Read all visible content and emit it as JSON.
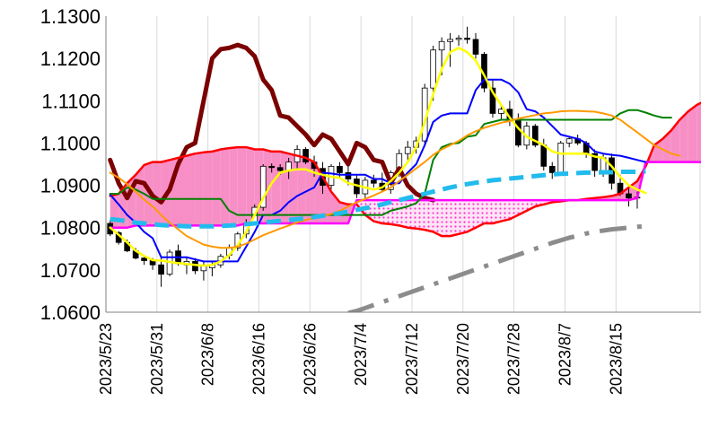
{
  "chart_data": {
    "type": "candlestick-ichimoku",
    "ylim": [
      1.06,
      1.13
    ],
    "y_ticks": [
      "1.1300",
      "1.1200",
      "1.1100",
      "1.1000",
      "1.0900",
      "1.0800",
      "1.0700",
      "1.0600"
    ],
    "y_tick_values": [
      1.13,
      1.12,
      1.11,
      1.1,
      1.09,
      1.08,
      1.07,
      1.06
    ],
    "x_ticks": [
      "2023/5/23",
      "2023/5/31",
      "2023/6/8",
      "2023/6/16",
      "2023/6/26",
      "2023/7/4",
      "2023/7/12",
      "2023/7/20",
      "2023/7/28",
      "2023/8/7",
      "2023/8/15"
    ],
    "x_tick_index": [
      0,
      6,
      12,
      18,
      24,
      30,
      36,
      42,
      48,
      54,
      60
    ],
    "n_slots": 70,
    "grid": "vertical",
    "candles": [
      [
        1.081,
        1.0818,
        1.078,
        1.0785
      ],
      [
        1.0788,
        1.0792,
        1.076,
        1.0765
      ],
      [
        1.0765,
        1.0772,
        1.0742,
        1.0745
      ],
      [
        1.0745,
        1.0752,
        1.0725,
        1.0728
      ],
      [
        1.0728,
        1.0735,
        1.0712,
        1.0722
      ],
      [
        1.0722,
        1.0728,
        1.07,
        1.0712
      ],
      [
        1.0712,
        1.073,
        1.066,
        1.069
      ],
      [
        1.069,
        1.0748,
        1.0685,
        1.0742
      ],
      [
        1.0745,
        1.076,
        1.071,
        1.0715
      ],
      [
        1.0712,
        1.073,
        1.069,
        1.072
      ],
      [
        1.072,
        1.0728,
        1.069,
        1.0698
      ],
      [
        1.0698,
        1.072,
        1.0675,
        1.071
      ],
      [
        1.0705,
        1.072,
        1.0685,
        1.0712
      ],
      [
        1.0712,
        1.0738,
        1.0705,
        1.0732
      ],
      [
        1.0735,
        1.076,
        1.0725,
        1.0752
      ],
      [
        1.0752,
        1.079,
        1.0745,
        1.0785
      ],
      [
        1.0785,
        1.082,
        1.0775,
        1.081
      ],
      [
        1.081,
        1.0855,
        1.0805,
        1.0848
      ],
      [
        1.0848,
        1.095,
        1.084,
        1.0945
      ],
      [
        1.0945,
        1.0952,
        1.093,
        1.0942
      ],
      [
        1.0942,
        1.095,
        1.0925,
        1.0935
      ],
      [
        1.0935,
        1.0965,
        1.0915,
        1.0955
      ],
      [
        1.0955,
        1.0995,
        1.094,
        1.0985
      ],
      [
        1.0985,
        1.099,
        1.095,
        1.0955
      ],
      [
        1.0955,
        1.097,
        1.092,
        1.094
      ],
      [
        1.094,
        1.0955,
        1.088,
        1.09
      ],
      [
        1.09,
        1.095,
        1.089,
        1.0945
      ],
      [
        1.0945,
        1.0955,
        1.092,
        1.093
      ],
      [
        1.093,
        1.0948,
        1.09,
        1.0915
      ],
      [
        1.0915,
        1.0925,
        1.087,
        1.088
      ],
      [
        1.088,
        1.092,
        1.087,
        1.0912
      ],
      [
        1.0912,
        1.0925,
        1.0895,
        1.0905
      ],
      [
        1.0905,
        1.093,
        1.0885,
        1.089
      ],
      [
        1.089,
        1.0935,
        1.088,
        1.093
      ],
      [
        1.093,
        1.0985,
        1.092,
        1.0975
      ],
      [
        1.0975,
        1.1005,
        1.096,
        1.099
      ],
      [
        1.099,
        1.1015,
        1.0975,
        1.1005
      ],
      [
        1.1005,
        1.114,
        1.0995,
        1.113
      ],
      [
        1.113,
        1.123,
        1.11,
        1.122
      ],
      [
        1.122,
        1.125,
        1.116,
        1.124
      ],
      [
        1.124,
        1.126,
        1.118,
        1.1245
      ],
      [
        1.1245,
        1.1255,
        1.123,
        1.1248
      ],
      [
        1.1248,
        1.1275,
        1.1235,
        1.1245
      ],
      [
        1.1245,
        1.126,
        1.12,
        1.121
      ],
      [
        1.121,
        1.1215,
        1.112,
        1.113
      ],
      [
        1.113,
        1.115,
        1.106,
        1.107
      ],
      [
        1.107,
        1.109,
        1.1055,
        1.108
      ],
      [
        1.108,
        1.11,
        1.104,
        1.1055
      ],
      [
        1.1055,
        1.107,
        1.099,
        1.0995
      ],
      [
        1.0995,
        1.105,
        1.0985,
        1.104
      ],
      [
        1.104,
        1.1045,
        1.099,
        1.0995
      ],
      [
        1.0995,
        1.101,
        1.0935,
        1.0945
      ],
      [
        1.0945,
        1.0955,
        1.0915,
        1.093
      ],
      [
        1.093,
        1.1005,
        1.0925,
        1.1
      ],
      [
        1.1,
        1.1015,
        1.099,
        1.101
      ],
      [
        1.101,
        1.102,
        1.0995,
        1.1
      ],
      [
        1.1,
        1.1005,
        1.0965,
        1.0975
      ],
      [
        1.0975,
        1.0985,
        1.092,
        1.0935
      ],
      [
        1.0935,
        1.0975,
        1.092,
        1.0965
      ],
      [
        1.0965,
        1.0975,
        1.089,
        1.0905
      ],
      [
        1.0905,
        1.0925,
        1.0875,
        1.088
      ],
      [
        1.088,
        1.0895,
        1.085,
        1.087
      ],
      [
        1.087,
        1.0885,
        1.0845,
        1.0872
      ]
    ],
    "series": [
      {
        "role": "lagging-span",
        "color": "#7b0000",
        "width": 5,
        "dash": "",
        "values": [
          1.096,
          1.0905,
          1.087,
          1.091,
          1.0905,
          1.0875,
          1.086,
          1.089,
          1.095,
          1.099,
          1.1,
          1.11,
          1.12,
          1.1222,
          1.1225,
          1.1232,
          1.1225,
          1.1205,
          1.115,
          1.1125,
          1.1065,
          1.106,
          1.104,
          1.102,
          1.0995,
          1.102,
          1.101,
          1.098,
          1.095,
          1.1,
          1.099,
          1.096,
          1.0955,
          1.0905,
          1.094,
          1.09,
          1.088,
          1.087,
          1.0865
        ]
      },
      {
        "role": "leading-span-a",
        "color": "#ff0000",
        "width": 2.5,
        "dash": "",
        "offset": 0,
        "values": [
          1.0875,
          1.088,
          1.0905,
          1.0925,
          1.0948,
          1.0955,
          1.0955,
          1.096,
          1.0965,
          1.097,
          1.0975,
          1.0978,
          1.098,
          1.0985,
          1.0988,
          1.099,
          1.099,
          1.0985,
          1.0985,
          1.098,
          1.098,
          1.0975,
          1.097,
          1.0965,
          1.0955,
          1.092,
          1.0885,
          1.086,
          1.0855,
          1.0855,
          1.083,
          1.0815,
          1.081,
          1.0808,
          1.0805,
          1.08,
          1.0798,
          1.0795,
          1.079,
          1.078,
          1.078,
          1.0785,
          1.079,
          1.08,
          1.081,
          1.081,
          1.0815,
          1.082,
          1.083,
          1.084,
          1.085,
          1.0855,
          1.086,
          1.0862,
          1.0865,
          1.0865,
          1.0868,
          1.087,
          1.0872,
          1.0875,
          1.088,
          1.0895,
          1.091,
          1.0945,
          1.0995,
          1.101,
          1.103,
          1.1055,
          1.1075,
          1.109,
          1.11
        ]
      },
      {
        "role": "leading-span-b",
        "color": "#ff00ff",
        "width": 2.5,
        "dash": "",
        "offset": 0,
        "values": [
          1.08,
          1.08,
          1.08,
          1.0805,
          1.0805,
          1.0805,
          1.0805,
          1.0805,
          1.0805,
          1.0805,
          1.0805,
          1.0805,
          1.0805,
          1.0805,
          1.0805,
          1.0805,
          1.081,
          1.081,
          1.081,
          1.081,
          1.081,
          1.081,
          1.081,
          1.081,
          1.081,
          1.081,
          1.081,
          1.081,
          1.081,
          1.0865,
          1.0865,
          1.0865,
          1.0865,
          1.0865,
          1.0865,
          1.0865,
          1.0865,
          1.0865,
          1.0865,
          1.0865,
          1.0865,
          1.0865,
          1.0865,
          1.0865,
          1.0865,
          1.0865,
          1.0865,
          1.0865,
          1.0865,
          1.0865,
          1.0865,
          1.0865,
          1.0865,
          1.0865,
          1.0865,
          1.0865,
          1.0865,
          1.0865,
          1.0865,
          1.0865,
          1.0865,
          1.0865,
          1.087,
          1.0955,
          1.0955,
          1.0955,
          1.0955,
          1.0955,
          1.0955,
          1.0955,
          1.0955
        ]
      },
      {
        "role": "conversion-line",
        "color": "#0000ff",
        "width": 2,
        "dash": "",
        "values": [
          1.0878,
          1.0855,
          1.083,
          1.0812,
          1.079,
          1.0775,
          1.073,
          1.073,
          1.073,
          1.073,
          1.0725,
          1.072,
          1.072,
          1.072,
          1.072,
          1.072,
          1.0755,
          1.079,
          1.083,
          1.083,
          1.084,
          1.086,
          1.0875,
          1.0885,
          1.0895,
          1.093,
          1.0928,
          1.0925,
          1.0925,
          1.0925,
          1.0925,
          1.0915,
          1.0915,
          1.0905,
          1.0905,
          1.093,
          1.095,
          1.0995,
          1.105,
          1.1065,
          1.107,
          1.107,
          1.107,
          1.1125,
          1.115,
          1.115,
          1.115,
          1.114,
          1.112,
          1.108,
          1.1075,
          1.106,
          1.104,
          1.102,
          1.1015,
          1.101,
          1.1,
          1.098,
          1.0975,
          1.0972,
          1.097,
          1.0965,
          1.096,
          1.0955
        ]
      },
      {
        "role": "base-line",
        "color": "#008000",
        "width": 2,
        "dash": "",
        "values": [
          1.088,
          1.088,
          1.0895,
          1.089,
          1.088,
          1.0868,
          1.0868,
          1.0868,
          1.0868,
          1.0868,
          1.0868,
          1.0868,
          1.0868,
          1.0868,
          1.084,
          1.083,
          1.083,
          1.083,
          1.083,
          1.083,
          1.083,
          1.083,
          1.083,
          1.083,
          1.083,
          1.083,
          1.083,
          1.083,
          1.083,
          1.083,
          1.083,
          1.083,
          1.083,
          1.084,
          1.0845,
          1.085,
          1.0858,
          1.088,
          1.096,
          1.099,
          1.0998,
          1.1,
          1.1015,
          1.1018,
          1.1045,
          1.105,
          1.1055,
          1.1055,
          1.1055,
          1.1055,
          1.1055,
          1.1055,
          1.1055,
          1.1055,
          1.1055,
          1.1055,
          1.1055,
          1.1055,
          1.1055,
          1.1055,
          1.107,
          1.1078,
          1.1078,
          1.1072,
          1.1065,
          1.106,
          1.106
        ]
      },
      {
        "role": "moving-average-yellow",
        "color": "#ffff00",
        "width": 2.5,
        "dash": "",
        "values": [
          1.08,
          1.0783,
          1.0765,
          1.0745,
          1.0733,
          1.0723,
          1.0722,
          1.0719,
          1.0716,
          1.0714,
          1.0712,
          1.071,
          1.0712,
          1.072,
          1.0735,
          1.0758,
          1.079,
          1.083,
          1.087,
          1.0905,
          1.093,
          1.0935,
          1.0938,
          1.0938,
          1.093,
          1.0925,
          1.092,
          1.0918,
          1.0905,
          1.09,
          1.0895,
          1.089,
          1.0895,
          1.091,
          1.093,
          1.0955,
          1.099,
          1.105,
          1.1115,
          1.1175,
          1.1215,
          1.1225,
          1.1215,
          1.1195,
          1.116,
          1.112,
          1.109,
          1.106,
          1.1035,
          1.1015,
          1.1005,
          1.0995,
          1.098,
          1.0975,
          1.0975,
          1.0975,
          1.0975,
          1.0968,
          1.0965,
          1.0945,
          1.092,
          1.09,
          1.089,
          1.0882
        ]
      },
      {
        "role": "moving-average-orange",
        "color": "#ff9900",
        "width": 2,
        "dash": "",
        "values": [
          1.093,
          1.0918,
          1.0903,
          1.0885,
          1.0866,
          1.085,
          1.083,
          1.0812,
          1.0796,
          1.078,
          1.077,
          1.076,
          1.0755,
          1.0752,
          1.0752,
          1.0755,
          1.0762,
          1.0772,
          1.0782,
          1.079,
          1.0798,
          1.0805,
          1.0812,
          1.0818,
          1.0823,
          1.0828,
          1.0832,
          1.084,
          1.085,
          1.086,
          1.0868,
          1.0876,
          1.0885,
          1.0895,
          1.091,
          1.0925,
          1.094,
          1.0955,
          1.0972,
          1.0985,
          1.0995,
          1.1005,
          1.1018,
          1.1028,
          1.1036,
          1.1042,
          1.1048,
          1.1052,
          1.1058,
          1.1062,
          1.1066,
          1.107,
          1.1072,
          1.1075,
          1.1076,
          1.1076,
          1.1075,
          1.1074,
          1.107,
          1.1065,
          1.1055,
          1.104,
          1.1025,
          1.101,
          1.0995,
          1.0985,
          1.0975,
          1.097
        ]
      },
      {
        "role": "moving-average-cyan-dashed",
        "color": "#22bbee",
        "width": 5,
        "dash": "16 9",
        "values": [
          1.082,
          1.0818,
          1.0815,
          1.0812,
          1.081,
          1.0808,
          1.0806,
          1.0805,
          1.0804,
          1.0803,
          1.0803,
          1.0803,
          1.0803,
          1.0804,
          1.0805,
          1.0806,
          1.0808,
          1.081,
          1.0812,
          1.0814,
          1.0816,
          1.0818,
          1.082,
          1.0822,
          1.0825,
          1.0828,
          1.0831,
          1.0834,
          1.0838,
          1.0842,
          1.0846,
          1.085,
          1.0855,
          1.086,
          1.0865,
          1.087,
          1.0875,
          1.088,
          1.0885,
          1.089,
          1.0895,
          1.0899,
          1.0903,
          1.0906,
          1.0909,
          1.0912,
          1.0914,
          1.0916,
          1.0918,
          1.092,
          1.0922,
          1.0924,
          1.0926,
          1.0927,
          1.0928,
          1.0929,
          1.093,
          1.093,
          1.0931,
          1.0931,
          1.0932,
          1.0932,
          1.0932,
          1.0933
        ]
      },
      {
        "role": "moving-average-gray-dashdot",
        "color": "#8c8c8c",
        "width": 5,
        "dash": "30 12 5 12",
        "offset": 28,
        "values": [
          1.0598,
          1.0603,
          1.061,
          1.0617,
          1.0624,
          1.0631,
          1.0638,
          1.0645,
          1.0652,
          1.0659,
          1.0666,
          1.0673,
          1.068,
          1.0687,
          1.0694,
          1.0701,
          1.0708,
          1.0715,
          1.0722,
          1.0729,
          1.0736,
          1.0743,
          1.075,
          1.0757,
          1.0764,
          1.077,
          1.0776,
          1.0781,
          1.0786,
          1.079,
          1.0793,
          1.0796,
          1.0798,
          1.08,
          1.0802,
          1.0803
        ]
      }
    ]
  }
}
